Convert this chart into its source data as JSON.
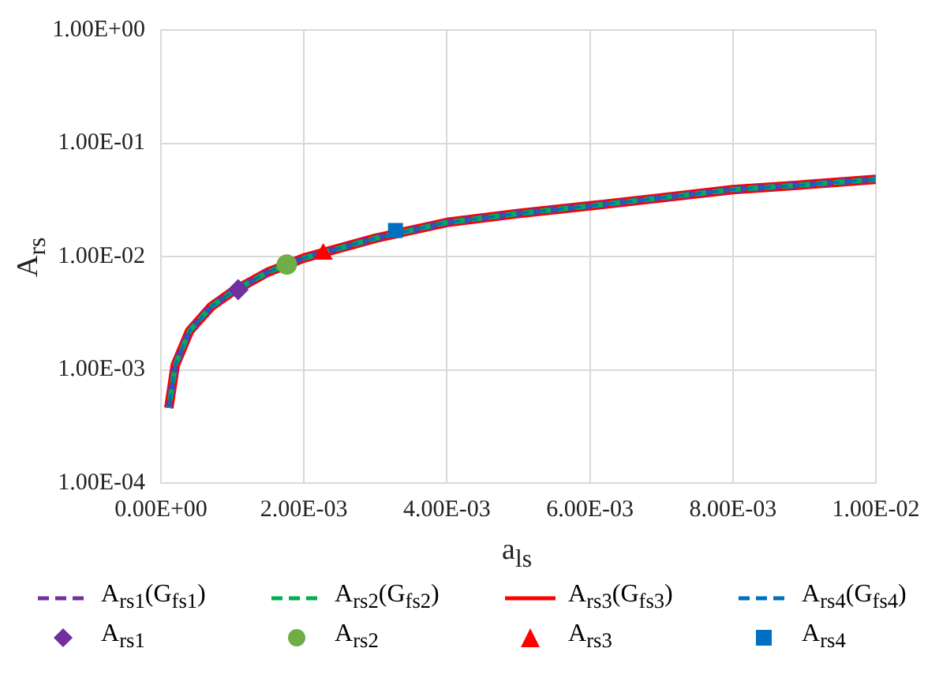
{
  "chart_data": {
    "type": "line",
    "xlabel": "a$_{ls}$",
    "ylabel": "A$_{rs}$",
    "log": "y",
    "grid": true,
    "legend": "bottom",
    "xlim": [
      0,
      0.01
    ],
    "xticks": [
      {
        "value": 0,
        "label": "0.00E+00"
      },
      {
        "value": 0.002,
        "label": "2.00E-03"
      },
      {
        "value": 0.004,
        "label": "4.00E-03"
      },
      {
        "value": 0.006,
        "label": "6.00E-03"
      },
      {
        "value": 0.008,
        "label": "8.00E-03"
      },
      {
        "value": 0.01,
        "label": "1.00E-02"
      }
    ],
    "ylim": [
      0.0001,
      1
    ],
    "yticks": [
      {
        "value": 0.0001,
        "label": "1.00E-04"
      },
      {
        "value": 0.001,
        "label": "1.00E-03"
      },
      {
        "value": 0.01,
        "label": "1.00E-02"
      },
      {
        "value": 0.1,
        "label": "1.00E-01"
      },
      {
        "value": 1,
        "label": "1.00E+00"
      }
    ],
    "series": [
      {
        "name": "A$_{rs1}$(G$_{fs1}$)",
        "type": "line",
        "color": "#7030a0",
        "line_style": "dashed",
        "marker": "none",
        "x": [
          0.00011,
          0.0002,
          0.0004,
          0.0007,
          0.001,
          0.0015,
          0.002,
          0.003,
          0.004,
          0.005,
          0.006,
          0.007,
          0.008,
          0.009,
          0.01
        ],
        "values": [
          0.00046,
          0.0011,
          0.0022,
          0.0036,
          0.0049,
          0.0073,
          0.0097,
          0.0145,
          0.02,
          0.024,
          0.028,
          0.033,
          0.039,
          0.043,
          0.048
        ]
      },
      {
        "name": "A$_{rs2}$(G$_{fs2}$)",
        "type": "line",
        "color": "#00b050",
        "line_style": "dashed",
        "marker": "none",
        "x": [
          0.00011,
          0.0002,
          0.0004,
          0.0007,
          0.001,
          0.0015,
          0.002,
          0.003,
          0.004,
          0.005,
          0.006,
          0.007,
          0.008,
          0.009,
          0.01
        ],
        "values": [
          0.00046,
          0.0011,
          0.0022,
          0.0036,
          0.0049,
          0.0073,
          0.0097,
          0.0145,
          0.02,
          0.024,
          0.028,
          0.033,
          0.039,
          0.043,
          0.048
        ]
      },
      {
        "name": "A$_{rs3}$(G$_{fs3}$)",
        "type": "line",
        "color": "#ff0000",
        "line_style": "solid",
        "marker": "none",
        "x": [
          0.00011,
          0.0002,
          0.0004,
          0.0007,
          0.001,
          0.0015,
          0.002,
          0.003,
          0.004,
          0.005,
          0.006,
          0.007,
          0.008,
          0.009,
          0.01
        ],
        "values": [
          0.00046,
          0.0011,
          0.0022,
          0.0036,
          0.0049,
          0.0073,
          0.0097,
          0.0145,
          0.02,
          0.024,
          0.028,
          0.033,
          0.039,
          0.043,
          0.048
        ]
      },
      {
        "name": "A$_{rs4}$(G$_{fs4}$)",
        "type": "line",
        "color": "#0070c0",
        "line_style": "dashed",
        "marker": "none",
        "x": [
          0.00011,
          0.0002,
          0.0004,
          0.0007,
          0.001,
          0.0015,
          0.002,
          0.003,
          0.004,
          0.005,
          0.006,
          0.007,
          0.008,
          0.009,
          0.01
        ],
        "values": [
          0.00046,
          0.0011,
          0.0022,
          0.0036,
          0.0049,
          0.0073,
          0.0097,
          0.0145,
          0.02,
          0.024,
          0.028,
          0.033,
          0.039,
          0.043,
          0.048
        ]
      },
      {
        "name": "A$_{rs1}$",
        "type": "scatter",
        "color": "#7030a0",
        "marker": "diamond",
        "x": [
          0.00108
        ],
        "values": [
          0.0051
        ]
      },
      {
        "name": "A$_{rs2}$",
        "type": "scatter",
        "color": "#70ad47",
        "marker": "circle",
        "x": [
          0.00176
        ],
        "values": [
          0.0085
        ]
      },
      {
        "name": "A$_{rs3}$",
        "type": "scatter",
        "color": "#ff0000",
        "marker": "triangle",
        "x": [
          0.00227
        ],
        "values": [
          0.0105
        ]
      },
      {
        "name": "A$_{rs4}$",
        "type": "scatter",
        "color": "#0070c0",
        "marker": "square",
        "x": [
          0.00328
        ],
        "values": [
          0.017
        ]
      }
    ]
  }
}
